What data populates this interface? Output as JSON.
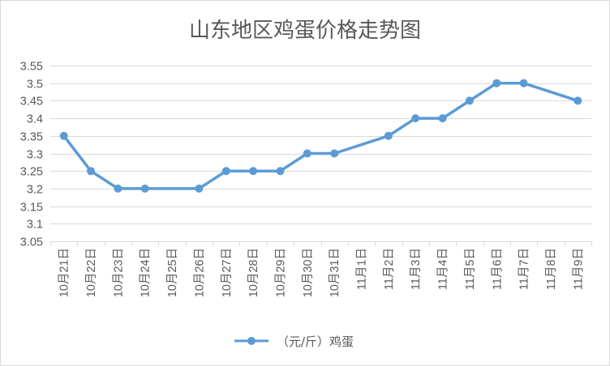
{
  "chart_data": {
    "type": "line",
    "title": "山东地区鸡蛋价格走势图",
    "categories": [
      "10月21日",
      "10月22日",
      "10月23日",
      "10月24日",
      "10月25日",
      "10月26日",
      "10月27日",
      "10月28日",
      "10月29日",
      "10月30日",
      "10月31日",
      "11月1日",
      "11月2日",
      "11月3日",
      "11月4日",
      "11月5日",
      "11月6日",
      "11月7日",
      "11月8日",
      "11月9日"
    ],
    "series": [
      {
        "name": "（元/斤）鸡蛋",
        "values": [
          3.35,
          3.25,
          3.2,
          3.2,
          null,
          3.2,
          3.25,
          3.25,
          3.25,
          3.3,
          3.3,
          null,
          3.35,
          3.4,
          3.4,
          3.45,
          3.5,
          3.5,
          null,
          3.45
        ],
        "color": "#5b9bd5"
      }
    ],
    "ylim": [
      3.05,
      3.55
    ],
    "yticks": [
      "3.05",
      "3.1",
      "3.15",
      "3.2",
      "3.25",
      "3.3",
      "3.35",
      "3.4",
      "3.45",
      "3.5",
      "3.55"
    ],
    "grid": true,
    "legend": "bottom",
    "gridColor": "#d9d9d9",
    "textColor": "#595959"
  }
}
